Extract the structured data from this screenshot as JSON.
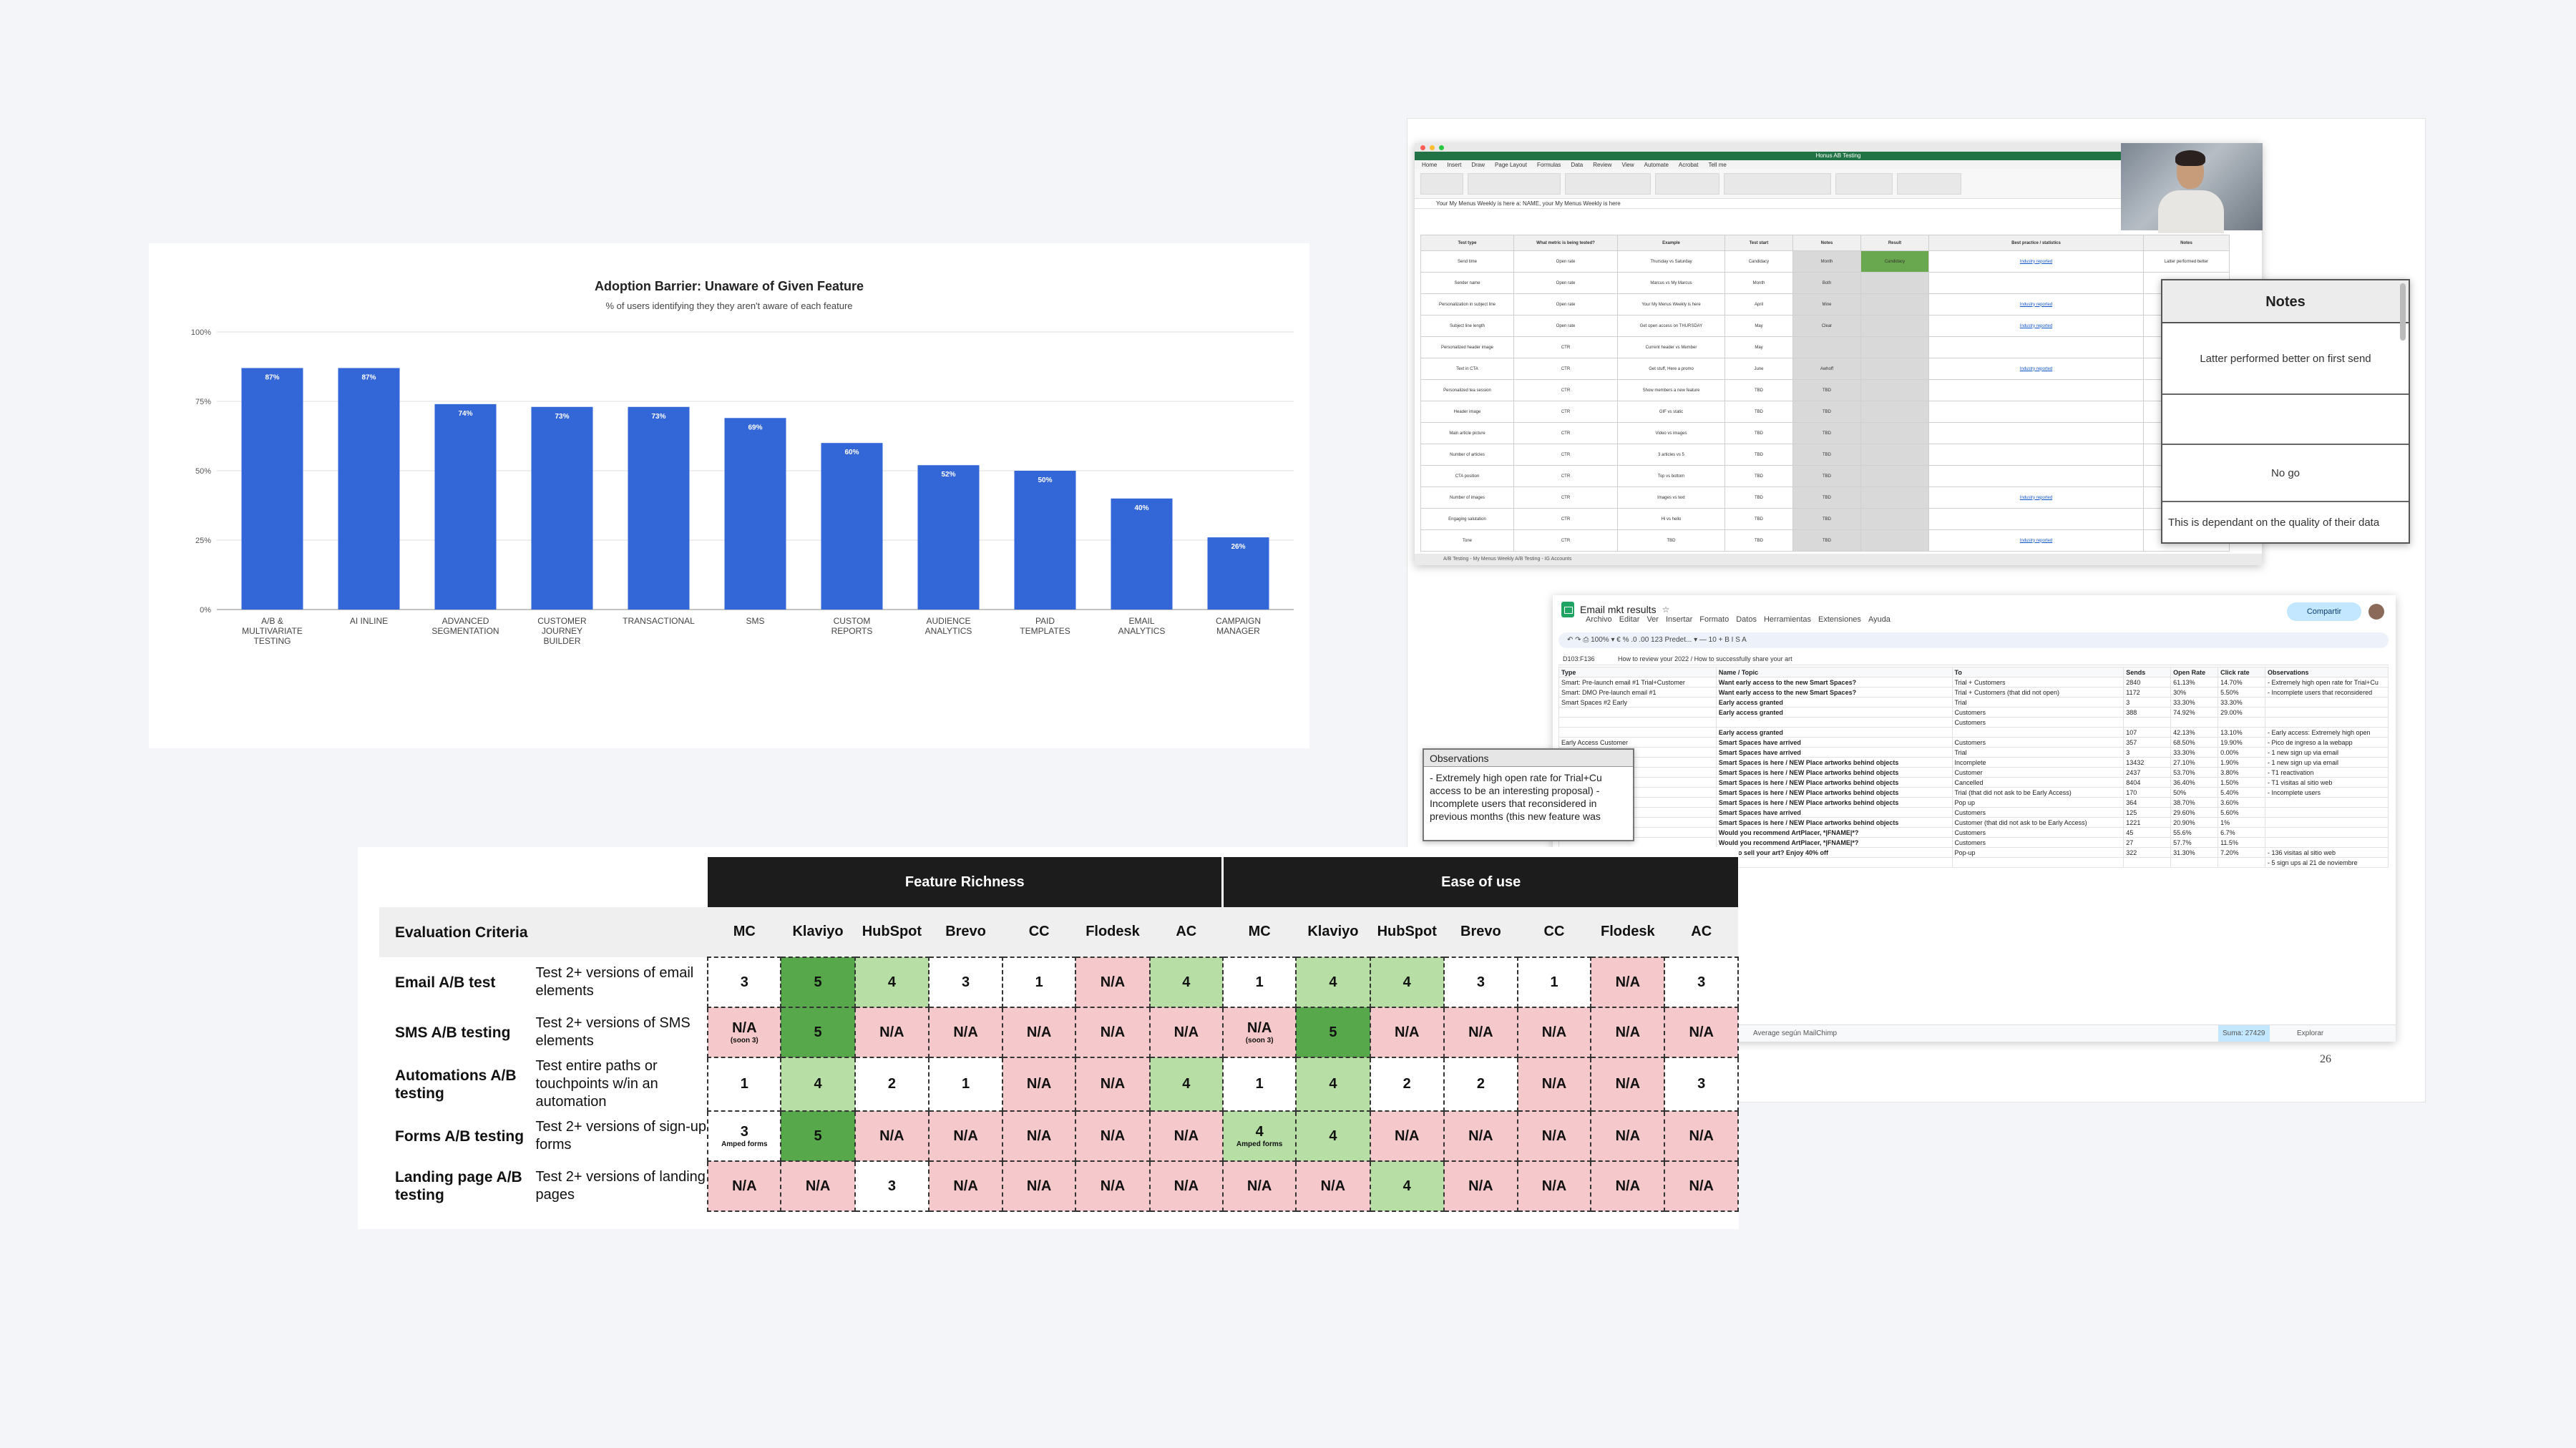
{
  "chart_data": {
    "type": "bar",
    "title": "Adoption Barrier: Unaware of Given Feature",
    "subtitle": "% of users identifying they they aren't aware of each feature",
    "categories": [
      [
        "A/B &",
        "MULTIVARIATE",
        "TESTING"
      ],
      [
        "AI INLINE"
      ],
      [
        "ADVANCED",
        "SEGMENTATION"
      ],
      [
        "CUSTOMER",
        "JOURNEY",
        "BUILDER"
      ],
      [
        "TRANSACTIONAL"
      ],
      [
        "SMS"
      ],
      [
        "CUSTOM",
        "REPORTS"
      ],
      [
        "AUDIENCE",
        "ANALYTICS"
      ],
      [
        "PAID",
        "TEMPLATES"
      ],
      [
        "EMAIL",
        "ANALYTICS"
      ],
      [
        "CAMPAIGN",
        "MANAGER"
      ]
    ],
    "values": [
      87,
      87,
      74,
      73,
      73,
      69,
      60,
      52,
      50,
      40,
      26
    ],
    "data_labels": [
      "87%",
      "87%",
      "74%",
      "73%",
      "73%",
      "69%",
      "60%",
      "52%",
      "50%",
      "40%",
      "26%"
    ],
    "y_ticks": [
      "0%",
      "25%",
      "50%",
      "75%",
      "100%"
    ],
    "ylim": [
      0,
      100
    ],
    "bar_color": "#3366d6",
    "grid": true
  },
  "excel": {
    "window_title": "Honus AB Testing",
    "menu": [
      "Home",
      "Insert",
      "Draw",
      "Page Layout",
      "Formulas",
      "Data",
      "Review",
      "View",
      "Automate",
      "Acrobat",
      "Tell me"
    ],
    "formula_text": "Your My Menus Weekly is here a: NAME, your My Menus Weekly is here",
    "headers": [
      "Test type",
      "What metric is being tested?",
      "Example",
      "Test start",
      "Notes",
      "Result",
      "Best practice / statistics",
      "Notes"
    ],
    "rows": [
      [
        "Send time",
        "Open rate",
        "Thursday vs Saturday",
        "Candidacy",
        "Month",
        "Candidacy",
        "Industry reported",
        "Latter performed better"
      ],
      [
        "Sender name",
        "Open rate",
        "Marcus vs My Marcus",
        "Month",
        "Both",
        "",
        "",
        ""
      ],
      [
        "Personalization in subject line",
        "Open rate",
        "Your My Menus Weekly is here",
        "April",
        "Mine",
        "",
        "Industry reported",
        ""
      ],
      [
        "Subject line length",
        "Open rate",
        "Get open access on THURSDAY",
        "May",
        "Clear",
        "",
        "Industry reported",
        ""
      ],
      [
        "Personalized header image",
        "CTR",
        "Current header vs Member",
        "May",
        "",
        "",
        "",
        ""
      ],
      [
        "Text in CTA",
        "CTR",
        "Get stuff, Here a promo",
        "June",
        "Awhoff",
        "",
        "Industry reported",
        ""
      ],
      [
        "Personalized tea session",
        "CTR",
        "Show members a new feature",
        "TBD",
        "TBD",
        "",
        "",
        ""
      ],
      [
        "Header image",
        "CTR",
        "GIF vs static",
        "TBD",
        "TBD",
        "",
        "",
        ""
      ],
      [
        "Main article picture",
        "CTR",
        "Video vs images",
        "TBD",
        "TBD",
        "",
        "",
        ""
      ],
      [
        "Number of articles",
        "CTR",
        "3 articles vs 5",
        "TBD",
        "TBD",
        "",
        "",
        ""
      ],
      [
        "CTA position",
        "CTR",
        "Top vs bottom",
        "TBD",
        "TBD",
        "",
        "",
        ""
      ],
      [
        "Number of images",
        "CTR",
        "Images vs text",
        "TBD",
        "TBD",
        "",
        "Industry reported",
        ""
      ],
      [
        "Engaging salutation",
        "CTR",
        "Hi vs hello",
        "TBD",
        "TBD",
        "",
        "",
        ""
      ],
      [
        "Tone",
        "CTR",
        "TBD",
        "TBD",
        "TBD",
        "",
        "Industry reported",
        ""
      ]
    ],
    "tabs": "A/B Testing - My Menus Weekly      A/B Testing - IG Accounts"
  },
  "notes": {
    "title": "Notes",
    "rows": [
      "Latter performed better on first send",
      "",
      "No go",
      "This is dependant on the quality of their data"
    ]
  },
  "gsheet": {
    "title": "Email mkt results",
    "menu": [
      "Archivo",
      "Editar",
      "Ver",
      "Insertar",
      "Formato",
      "Datos",
      "Herramientas",
      "Extensiones",
      "Ayuda"
    ],
    "share": "Compartir",
    "toolbar": "↶  ↷  ⎙  100%  ▾   €  %  .0  .00  123  Predet...  ▾   —  10  +   B  I  S  A",
    "cell_ref": "D103:F136",
    "formula": "How to review your 2022  /  How to successfully share your art",
    "columns": [
      "Type",
      "Name / Topic",
      "To",
      "Sends",
      "Open Rate",
      "Click rate",
      "Observations"
    ],
    "rows": [
      [
        "Smart: Pre-launch email #1 Trial+Customer",
        "Want early access to the new Smart Spaces?",
        "Trial + Customers",
        "2840",
        "61.13%",
        "14.70%",
        "- Extremely high open rate for Trial+Cu"
      ],
      [
        "Smart: DMO Pre-launch email #1",
        "Want early access to the new Smart Spaces?",
        "Trial + Customers (that did not open)",
        "1172",
        "30%",
        "5.50%",
        "- Incomplete users that reconsidered"
      ],
      [
        "Smart Spaces #2 Early",
        "Early access granted",
        "Trial",
        "3",
        "33.30%",
        "33.30%",
        ""
      ],
      [
        "",
        "Early access granted",
        "Customers",
        "388",
        "74.92%",
        "29.00%",
        ""
      ],
      [
        "",
        "",
        "Customers",
        "",
        "",
        "",
        ""
      ],
      [
        "",
        "Early access granted",
        "",
        "107",
        "42.13%",
        "13.10%",
        "- Early access: Extremely high open"
      ],
      [
        "Early Access Customer",
        "Smart Spaces have arrived",
        "Customers",
        "357",
        "68.50%",
        "19.90%",
        "- Pico de ingreso a la webapp"
      ],
      [
        "",
        "Smart Spaces have arrived",
        "Trial",
        "3",
        "33.30%",
        "0.00%",
        "- 1 new sign up via email"
      ],
      [
        "",
        "Smart Spaces is here / NEW Place artworks behind objects",
        "Incomplete",
        "13432",
        "27.10%",
        "1.90%",
        "- 1 new sign up via email"
      ],
      [
        "",
        "Smart Spaces is here / NEW Place artworks behind objects",
        "Customer",
        "2437",
        "53.70%",
        "3.80%",
        "- T1 reactivation"
      ],
      [
        "",
        "Smart Spaces is here / NEW Place artworks behind objects",
        "Cancelled",
        "8404",
        "36.40%",
        "1.50%",
        "- T1 visitas al sitio web"
      ],
      [
        "",
        "Smart Spaces is here / NEW Place artworks behind objects",
        "Trial (that did not ask to be Early Access)",
        "170",
        "50%",
        "5.40%",
        "- Incomplete users"
      ],
      [
        "",
        "Smart Spaces is here / NEW Place artworks behind objects",
        "Pop up",
        "364",
        "38.70%",
        "3.60%",
        ""
      ],
      [
        "",
        "Smart Spaces have arrived",
        "Customers",
        "125",
        "29.60%",
        "5.60%",
        ""
      ],
      [
        "",
        "Smart Spaces is here / NEW Place artworks behind objects",
        "Customer (that did not ask to be Early Access)",
        "1221",
        "20.90%",
        "1%",
        ""
      ],
      [
        "",
        "Would you recommend ArtPlacer, *|FNAME|*?",
        "Customers",
        "45",
        "55.6%",
        "6.7%",
        ""
      ],
      [
        "",
        "Would you recommend ArtPlacer, *|FNAME|*?",
        "Customers",
        "27",
        "57.7%",
        "11.5%",
        ""
      ],
      [
        "",
        "Want to sell your art? Enjoy 40% off",
        "Pop-up",
        "322",
        "31.30%",
        "7.20%",
        "- 136 visitas al sitio web"
      ],
      [
        "",
        "",
        "",
        "",
        "",
        "",
        "- 5 sign ups al 21 de noviembre"
      ]
    ],
    "footer_left": "Average según MailChimp",
    "footer_sum": "Suma: 27429",
    "footer_explore": "Explorar"
  },
  "observations": {
    "title": "Observations",
    "text": "- Extremely high open rate for Trial+Cu access to be an interesting proposal) - Incomplete users that reconsidered in previous months (this new feature was"
  },
  "page_number": "26",
  "eval": {
    "groups": [
      "Feature Richness",
      "Ease of use"
    ],
    "criteria_header": "Evaluation Criteria",
    "columns": [
      "MC",
      "Klaviyo",
      "HubSpot",
      "Brevo",
      "CC",
      "Flodesk",
      "AC",
      "MC",
      "Klaviyo",
      "HubSpot",
      "Brevo",
      "CC",
      "Flodesk",
      "AC"
    ],
    "rows": [
      {
        "criterion": "Email A/B test",
        "description": "Test 2+ versions of email elements",
        "cells": [
          {
            "v": "3",
            "c": "w"
          },
          {
            "v": "5",
            "c": "5"
          },
          {
            "v": "4",
            "c": "4"
          },
          {
            "v": "3",
            "c": "w"
          },
          {
            "v": "1",
            "c": "w"
          },
          {
            "v": "N/A",
            "c": "na"
          },
          {
            "v": "4",
            "c": "4"
          },
          {
            "v": "1",
            "c": "w"
          },
          {
            "v": "4",
            "c": "4"
          },
          {
            "v": "4",
            "c": "4"
          },
          {
            "v": "3",
            "c": "w"
          },
          {
            "v": "1",
            "c": "w"
          },
          {
            "v": "N/A",
            "c": "na"
          },
          {
            "v": "3",
            "c": "w"
          }
        ]
      },
      {
        "criterion": "SMS A/B testing",
        "description": "Test 2+ versions of SMS elements",
        "cells": [
          {
            "v": "N/A",
            "c": "na",
            "sub": "(soon 3)"
          },
          {
            "v": "5",
            "c": "5"
          },
          {
            "v": "N/A",
            "c": "na"
          },
          {
            "v": "N/A",
            "c": "na"
          },
          {
            "v": "N/A",
            "c": "na"
          },
          {
            "v": "N/A",
            "c": "na"
          },
          {
            "v": "N/A",
            "c": "na"
          },
          {
            "v": "N/A",
            "c": "na",
            "sub": "(soon 3)"
          },
          {
            "v": "5",
            "c": "5"
          },
          {
            "v": "N/A",
            "c": "na"
          },
          {
            "v": "N/A",
            "c": "na"
          },
          {
            "v": "N/A",
            "c": "na"
          },
          {
            "v": "N/A",
            "c": "na"
          },
          {
            "v": "N/A",
            "c": "na"
          }
        ]
      },
      {
        "criterion": "Automations A/B testing",
        "description": "Test entire paths or touchpoints w/in an automation",
        "cells": [
          {
            "v": "1",
            "c": "w"
          },
          {
            "v": "4",
            "c": "4"
          },
          {
            "v": "2",
            "c": "w"
          },
          {
            "v": "1",
            "c": "w"
          },
          {
            "v": "N/A",
            "c": "na"
          },
          {
            "v": "N/A",
            "c": "na"
          },
          {
            "v": "4",
            "c": "4"
          },
          {
            "v": "1",
            "c": "w"
          },
          {
            "v": "4",
            "c": "4"
          },
          {
            "v": "2",
            "c": "w"
          },
          {
            "v": "2",
            "c": "w"
          },
          {
            "v": "N/A",
            "c": "na"
          },
          {
            "v": "N/A",
            "c": "na"
          },
          {
            "v": "3",
            "c": "w"
          }
        ]
      },
      {
        "criterion": "Forms A/B testing",
        "description": "Test 2+ versions of sign-up forms",
        "cells": [
          {
            "v": "3",
            "c": "w",
            "sub": "Amped forms"
          },
          {
            "v": "5",
            "c": "5"
          },
          {
            "v": "N/A",
            "c": "na"
          },
          {
            "v": "N/A",
            "c": "na"
          },
          {
            "v": "N/A",
            "c": "na"
          },
          {
            "v": "N/A",
            "c": "na"
          },
          {
            "v": "N/A",
            "c": "na"
          },
          {
            "v": "4",
            "c": "4",
            "sub": "Amped forms"
          },
          {
            "v": "4",
            "c": "4"
          },
          {
            "v": "N/A",
            "c": "na"
          },
          {
            "v": "N/A",
            "c": "na"
          },
          {
            "v": "N/A",
            "c": "na"
          },
          {
            "v": "N/A",
            "c": "na"
          },
          {
            "v": "N/A",
            "c": "na"
          }
        ]
      },
      {
        "criterion": "Landing page A/B testing",
        "description": "Test 2+ versions of landing pages",
        "cells": [
          {
            "v": "N/A",
            "c": "na"
          },
          {
            "v": "N/A",
            "c": "na"
          },
          {
            "v": "3",
            "c": "w"
          },
          {
            "v": "N/A",
            "c": "na"
          },
          {
            "v": "N/A",
            "c": "na"
          },
          {
            "v": "N/A",
            "c": "na"
          },
          {
            "v": "N/A",
            "c": "na"
          },
          {
            "v": "N/A",
            "c": "na"
          },
          {
            "v": "N/A",
            "c": "na"
          },
          {
            "v": "4",
            "c": "4"
          },
          {
            "v": "N/A",
            "c": "na"
          },
          {
            "v": "N/A",
            "c": "na"
          },
          {
            "v": "N/A",
            "c": "na"
          },
          {
            "v": "N/A",
            "c": "na"
          }
        ]
      }
    ]
  }
}
